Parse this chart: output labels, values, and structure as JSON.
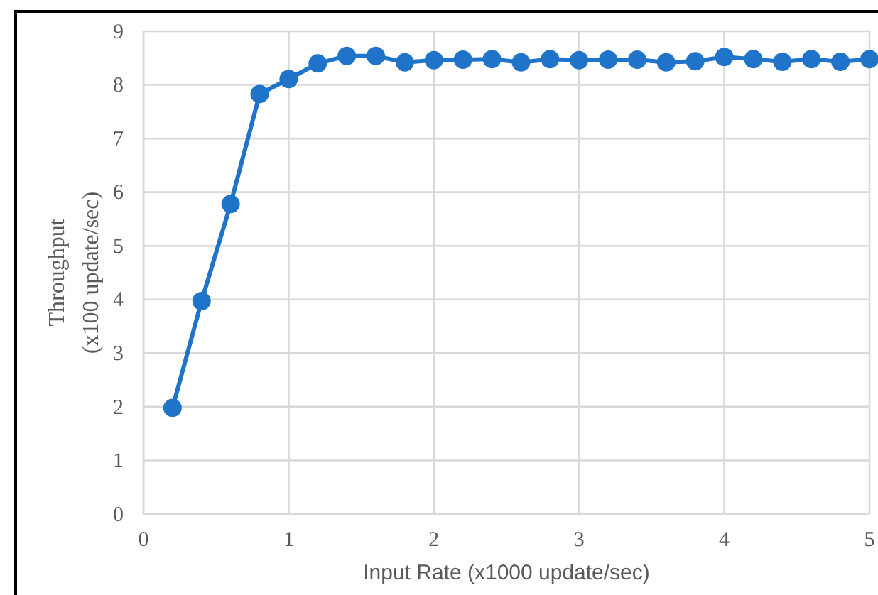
{
  "chart_data": {
    "type": "line",
    "xlabel": "Input Rate (x1000 update/sec)",
    "ylabel": "Throughput\n(x100  update/sec)",
    "x": [
      0.2,
      0.4,
      0.6,
      0.8,
      1.0,
      1.2,
      1.4,
      1.6,
      1.8,
      2.0,
      2.2,
      2.4,
      2.6,
      2.8,
      3.0,
      3.2,
      3.4,
      3.6,
      3.8,
      4.0,
      4.2,
      4.4,
      4.6,
      4.8,
      5.0
    ],
    "series": [
      {
        "color": "#1f74c9",
        "values": [
          1.98,
          3.97,
          5.78,
          7.83,
          8.11,
          8.4,
          8.54,
          8.54,
          8.42,
          8.46,
          8.47,
          8.48,
          8.42,
          8.48,
          8.46,
          8.47,
          8.47,
          8.42,
          8.44,
          8.52,
          8.48,
          8.43,
          8.48,
          8.43,
          8.48
        ]
      }
    ],
    "xlim": [
      0,
      5
    ],
    "xticks": [
      0,
      1,
      2,
      3,
      4,
      5
    ],
    "ylim": [
      0,
      9
    ],
    "yticks": [
      0,
      1,
      2,
      3,
      4,
      5,
      6,
      7,
      8,
      9
    ],
    "grid": true,
    "marker": "circle",
    "line_style": "solid"
  }
}
